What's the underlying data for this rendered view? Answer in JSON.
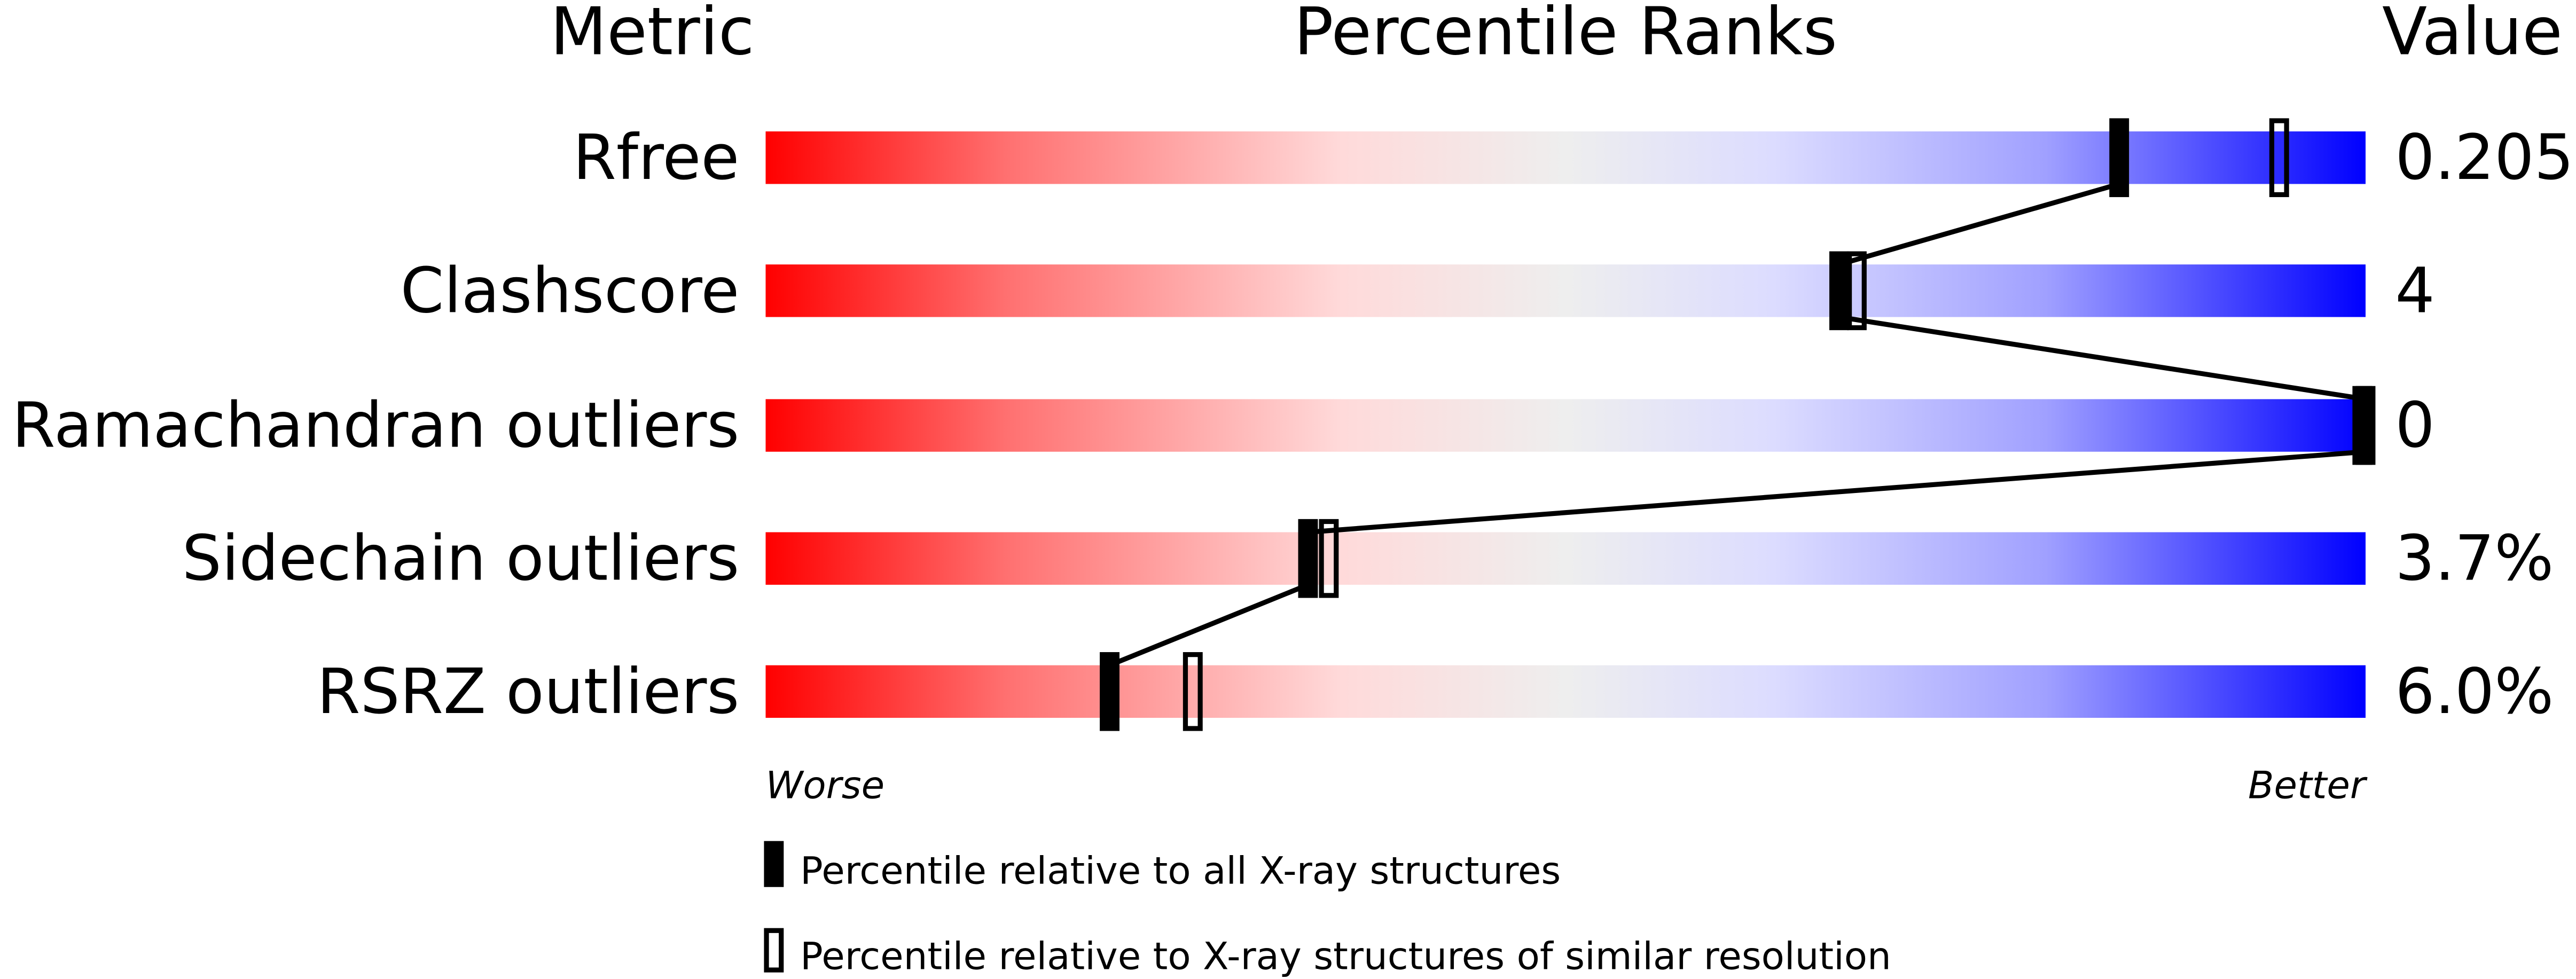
{
  "chart_data": {
    "type": "percentile-slider",
    "headers": {
      "metric": "Metric",
      "ranks": "Percentile Ranks",
      "value": "Value"
    },
    "xlim": [
      0,
      100
    ],
    "axis_labels": {
      "left": "Worse",
      "right": "Better"
    },
    "metrics": [
      {
        "name": "Rfree",
        "value": "0.205",
        "percentile_all": 84.6,
        "percentile_similar": 94.6
      },
      {
        "name": "Clashscore",
        "value": "4",
        "percentile_all": 67.1,
        "percentile_similar": 68.2
      },
      {
        "name": "Ramachandran outliers",
        "value": "0",
        "percentile_all": 100,
        "percentile_similar": 100
      },
      {
        "name": "Sidechain outliers",
        "value": "3.7%",
        "percentile_all": 33.9,
        "percentile_similar": 35.2
      },
      {
        "name": "RSRZ outliers",
        "value": "6.0%",
        "percentile_all": 21.5,
        "percentile_similar": 26.7
      }
    ],
    "legend": [
      {
        "marker": "filled",
        "label": "Percentile relative to all X-ray structures"
      },
      {
        "marker": "open",
        "label": "Percentile relative to X-ray structures of similar resolution"
      }
    ],
    "colors": {
      "worse": "#ff0000",
      "mid": "#eeeeee",
      "better": "#0000ff"
    }
  }
}
